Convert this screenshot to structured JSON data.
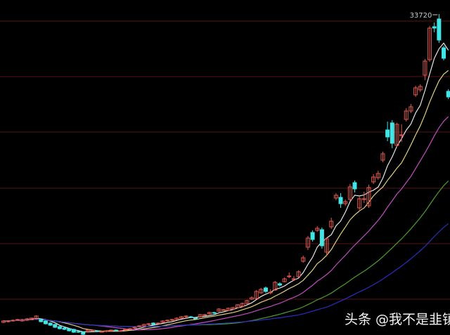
{
  "chart_data": {
    "type": "candlestick",
    "title": "",
    "xlabel": "",
    "ylabel": "",
    "high_label": "33720",
    "ylim": [
      800,
      34420
    ],
    "grid": true,
    "candle_format": [
      "open",
      "close",
      "high",
      "low"
    ],
    "candles": [
      [
        2990,
        3130,
        3200,
        2920
      ],
      [
        3060,
        3130,
        3200,
        2990
      ],
      [
        3130,
        3200,
        3270,
        3060
      ],
      [
        3200,
        3270,
        3340,
        3130
      ],
      [
        3130,
        3270,
        3340,
        3060
      ],
      [
        3200,
        3340,
        3410,
        3130
      ],
      [
        3270,
        3410,
        3480,
        3200
      ],
      [
        3340,
        3620,
        3690,
        3270
      ],
      [
        3270,
        3060,
        3340,
        2990
      ],
      [
        3130,
        2850,
        3200,
        2780
      ],
      [
        2920,
        2710,
        2990,
        2640
      ],
      [
        2780,
        2500,
        2850,
        2430
      ],
      [
        2570,
        2360,
        2640,
        2290
      ],
      [
        2430,
        2290,
        2500,
        2220
      ],
      [
        2360,
        2150,
        2430,
        2080
      ],
      [
        2290,
        2010,
        2360,
        1940
      ],
      [
        2080,
        2010,
        2150,
        1940
      ],
      [
        2010,
        1800,
        2080,
        1730
      ],
      [
        2080,
        2220,
        2290,
        2010
      ],
      [
        2150,
        2220,
        2290,
        2080
      ],
      [
        2150,
        2080,
        2220,
        2010
      ],
      [
        2080,
        2080,
        2150,
        2010
      ],
      [
        2080,
        2150,
        2220,
        2010
      ],
      [
        2150,
        2220,
        2290,
        2080
      ],
      [
        2220,
        2150,
        2290,
        2080
      ],
      [
        2150,
        2150,
        2220,
        2080
      ],
      [
        2220,
        2290,
        2360,
        2150
      ],
      [
        2290,
        2360,
        2430,
        2220
      ],
      [
        2430,
        2500,
        2570,
        2360
      ],
      [
        2570,
        2640,
        2710,
        2500
      ],
      [
        2640,
        2780,
        2850,
        2570
      ],
      [
        2780,
        2850,
        2920,
        2710
      ],
      [
        2920,
        2780,
        2990,
        2710
      ],
      [
        2920,
        2920,
        2990,
        2850
      ],
      [
        2990,
        3130,
        3200,
        2920
      ],
      [
        3130,
        3200,
        3270,
        3060
      ],
      [
        3200,
        3270,
        3340,
        3130
      ],
      [
        3270,
        3410,
        3480,
        3200
      ],
      [
        3410,
        3550,
        3620,
        3340
      ],
      [
        3550,
        3620,
        3690,
        3480
      ],
      [
        3550,
        3480,
        3620,
        3410
      ],
      [
        3410,
        3340,
        3480,
        3270
      ],
      [
        3550,
        3760,
        3830,
        3480
      ],
      [
        3690,
        3760,
        3830,
        3620
      ],
      [
        3830,
        3970,
        4040,
        3760
      ],
      [
        3970,
        3900,
        4040,
        3830
      ],
      [
        4110,
        4320,
        4390,
        4040
      ],
      [
        4250,
        4250,
        4320,
        4180
      ],
      [
        4180,
        4390,
        4460,
        4110
      ],
      [
        4320,
        4460,
        4530,
        4250
      ],
      [
        4460,
        4740,
        4810,
        4390
      ],
      [
        4600,
        4880,
        4950,
        4530
      ],
      [
        4880,
        5160,
        5230,
        4810
      ],
      [
        5300,
        5440,
        5580,
        5230
      ],
      [
        5370,
        6070,
        6210,
        5300
      ],
      [
        5930,
        6280,
        6420,
        5860
      ],
      [
        6420,
        6070,
        6560,
        5930
      ],
      [
        6000,
        6000,
        6280,
        5790
      ],
      [
        6210,
        6980,
        7120,
        6140
      ],
      [
        6840,
        6700,
        6980,
        6560
      ],
      [
        7050,
        7330,
        7470,
        6980
      ],
      [
        7610,
        7610,
        7960,
        7400
      ],
      [
        7330,
        7330,
        7610,
        7120
      ],
      [
        7540,
        8030,
        8170,
        7470
      ],
      [
        9080,
        9430,
        9640,
        8940
      ],
      [
        10480,
        11390,
        11600,
        10200
      ],
      [
        11950,
        11250,
        12160,
        11040
      ],
      [
        12160,
        12370,
        12580,
        12020
      ],
      [
        12230,
        10620,
        12440,
        10340
      ],
      [
        9990,
        11320,
        11460,
        9570
      ],
      [
        12510,
        13070,
        13420,
        12300
      ],
      [
        15380,
        15660,
        15870,
        15170
      ],
      [
        15450,
        14820,
        15870,
        14400
      ],
      [
        14820,
        15030,
        15240,
        14610
      ],
      [
        15240,
        16500,
        16780,
        15100
      ],
      [
        16920,
        16290,
        17130,
        15940
      ],
      [
        14400,
        15310,
        15520,
        14190
      ],
      [
        15310,
        15310,
        16010,
        14890
      ],
      [
        14610,
        16430,
        16710,
        14400
      ],
      [
        16990,
        17480,
        17760,
        16780
      ],
      [
        17410,
        17830,
        18110,
        17200
      ],
      [
        19160,
        19790,
        20000,
        18950
      ],
      [
        22170,
        21470,
        23000,
        21050
      ],
      [
        22870,
        20840,
        23150,
        20350
      ],
      [
        20630,
        22730,
        22870,
        20420
      ],
      [
        21680,
        21680,
        22730,
        20980
      ],
      [
        23220,
        24060,
        24340,
        23010
      ],
      [
        24060,
        24480,
        24760,
        23850
      ],
      [
        25670,
        26370,
        26580,
        25460
      ],
      [
        26160,
        26510,
        26720,
        25950
      ],
      [
        27630,
        29030,
        29240,
        27140
      ],
      [
        29170,
        32320,
        32530,
        28960
      ],
      [
        32460,
        32320,
        32880,
        31900
      ],
      [
        33230,
        31130,
        33720,
        30850
      ],
      [
        30360,
        29310,
        30570,
        29100
      ],
      [
        26020,
        25460,
        26230,
        25250
      ]
    ],
    "moving_averages": [
      {
        "period": 5,
        "color": "#e6e6e6"
      },
      {
        "period": 10,
        "color": "#e0d080"
      },
      {
        "period": 20,
        "color": "#c04cc0"
      },
      {
        "period": 40,
        "color": "#4aa02a"
      },
      {
        "period": 60,
        "color": "#2c2cc0"
      }
    ],
    "colors": {
      "up": "#e05a50",
      "down": "#40e6e6",
      "grid": "#5a1414",
      "background": "#000000",
      "label": "#c8c8c8"
    }
  },
  "watermark": "头条 @我不是韭镇"
}
